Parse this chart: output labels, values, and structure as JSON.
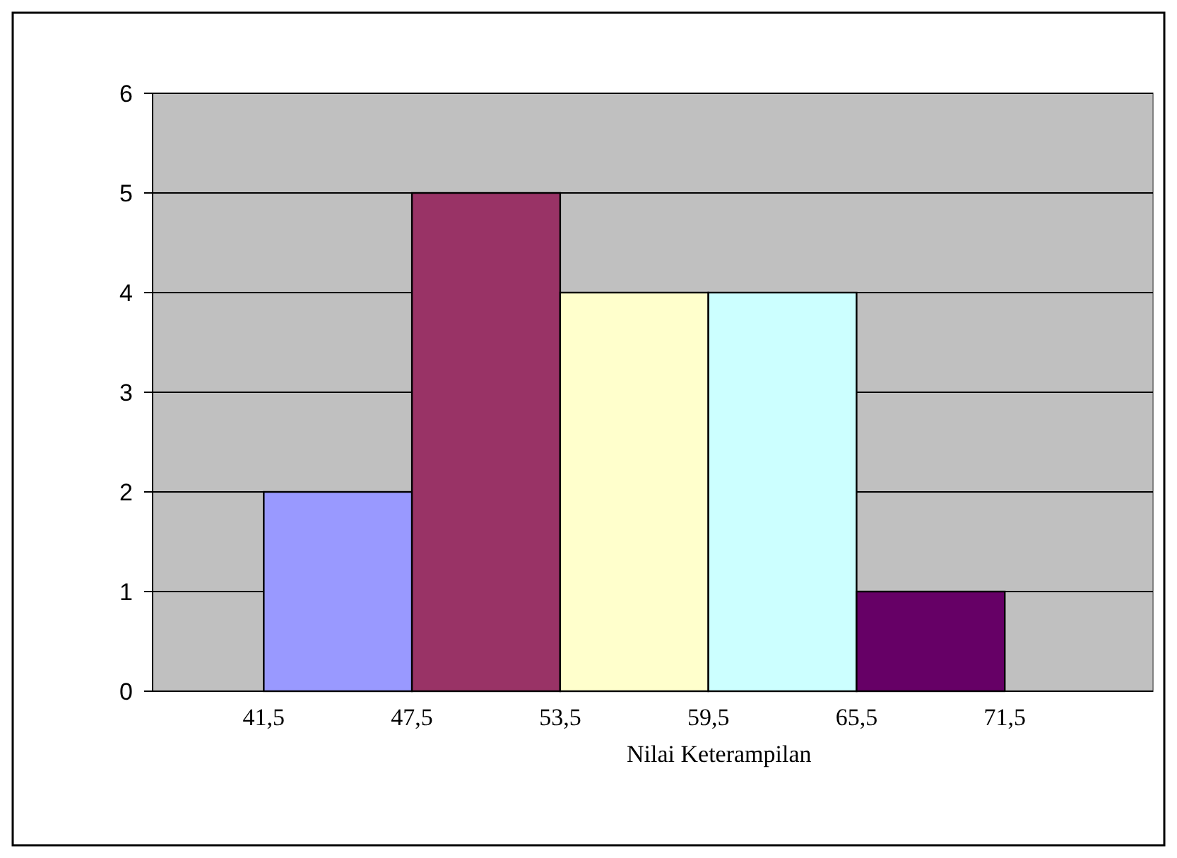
{
  "chart_data": {
    "type": "histogram",
    "xlabel": "Nilai Keterampilan",
    "bins": [
      41.5,
      47.5,
      53.5,
      59.5,
      65.5,
      71.5
    ],
    "values": [
      2,
      5,
      4,
      4,
      1
    ],
    "colors": [
      "#9999ff",
      "#993366",
      "#ffffcc",
      "#ccffff",
      "#660066"
    ],
    "xlim": [
      37,
      77.5
    ],
    "xticks": [
      {
        "value": 41.5,
        "label": "41,5"
      },
      {
        "value": 47.5,
        "label": "47,5"
      },
      {
        "value": 53.5,
        "label": "53,5"
      },
      {
        "value": 59.5,
        "label": "59,5"
      },
      {
        "value": 65.5,
        "label": "65,5"
      },
      {
        "value": 71.5,
        "label": "71,5"
      }
    ],
    "ylim": [
      0,
      6
    ],
    "yticks": [
      0,
      1,
      2,
      3,
      4,
      5,
      6
    ],
    "grid": "y"
  }
}
